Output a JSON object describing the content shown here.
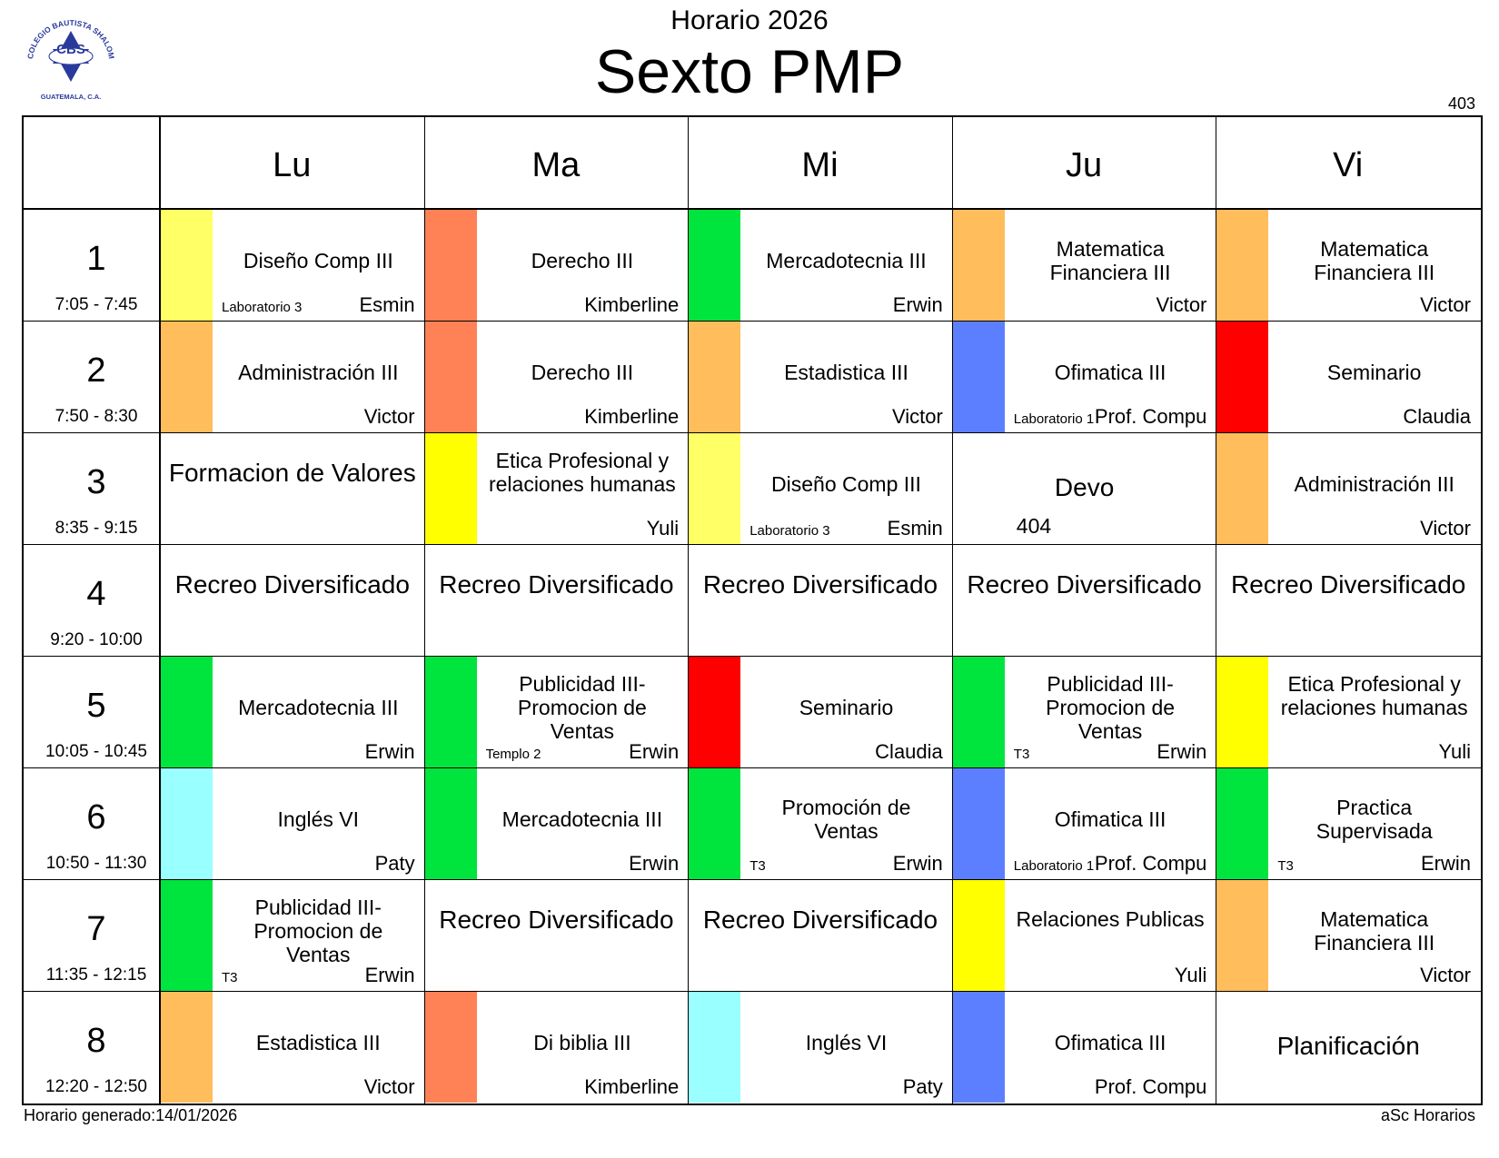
{
  "header": {
    "logo_text": "COLEGIO BAUTISTA SHALOM",
    "logo_abbr": "CBS",
    "logo_location": "GUATEMALA, C.A.",
    "year_title": "Horario 2026",
    "main_title": "Sexto PMP",
    "room_number": "403"
  },
  "days": [
    "Lu",
    "Ma",
    "Mi",
    "Ju",
    "Vi"
  ],
  "periods": [
    {
      "num": "1",
      "time": "7:05 - 7:45"
    },
    {
      "num": "2",
      "time": "7:50 - 8:30"
    },
    {
      "num": "3",
      "time": "8:35 - 9:15"
    },
    {
      "num": "4",
      "time": "9:20 - 10:00"
    },
    {
      "num": "5",
      "time": "10:05 - 10:45"
    },
    {
      "num": "6",
      "time": "10:50 - 11:30"
    },
    {
      "num": "7",
      "time": "11:35 - 12:15"
    },
    {
      "num": "8",
      "time": "12:20 - 12:50"
    }
  ],
  "colors": {
    "yellow_light": "#ffff66",
    "salmon": "#ff8257",
    "green": "#00e53d",
    "orange": "#ffbd5b",
    "blue": "#5b7fff",
    "red": "#ff0000",
    "yellow": "#ffff00",
    "cyan": "#9affff"
  },
  "schedule": [
    [
      {
        "subject": "Diseño Comp III",
        "teacher": "Esmin",
        "room": "Laboratorio 3",
        "color": "#ffff66"
      },
      {
        "subject": "Administración III",
        "teacher": "Victor",
        "room": "",
        "color": "#ffbd5b"
      },
      {
        "subject": "Formacion de Valores",
        "teacher": "",
        "room": "",
        "color": "",
        "big": true
      },
      {
        "subject": "Recreo Diversificado",
        "teacher": "",
        "room": "",
        "color": "",
        "big": true
      },
      {
        "subject": "Mercadotecnia III",
        "teacher": "Erwin",
        "room": "",
        "color": "#00e53d"
      },
      {
        "subject": "Inglés VI",
        "teacher": "Paty",
        "room": "",
        "color": "#9affff"
      },
      {
        "subject": "Publicidad III-Promocion de Ventas",
        "teacher": "Erwin",
        "room": "T3",
        "color": "#00e53d"
      },
      {
        "subject": "Estadistica III",
        "teacher": "Victor",
        "room": "",
        "color": "#ffbd5b"
      }
    ],
    [
      {
        "subject": "Derecho III",
        "teacher": "Kimberline",
        "room": "",
        "color": "#ff8257"
      },
      {
        "subject": "Derecho III",
        "teacher": "Kimberline",
        "room": "",
        "color": "#ff8257"
      },
      {
        "subject": "Etica Profesional y relaciones humanas",
        "teacher": "Yuli",
        "room": "",
        "color": "#ffff00"
      },
      {
        "subject": "Recreo Diversificado",
        "teacher": "",
        "room": "",
        "color": "",
        "big": true
      },
      {
        "subject": "Publicidad III-Promocion de Ventas",
        "teacher": "Erwin",
        "room": "Templo 2",
        "color": "#00e53d"
      },
      {
        "subject": "Mercadotecnia III",
        "teacher": "Erwin",
        "room": "",
        "color": "#00e53d"
      },
      {
        "subject": "Recreo Diversificado",
        "teacher": "",
        "room": "",
        "color": "",
        "big": true
      },
      {
        "subject": "Di biblia III",
        "teacher": "Kimberline",
        "room": "",
        "color": "#ff8257"
      }
    ],
    [
      {
        "subject": "Mercadotecnia III",
        "teacher": "Erwin",
        "room": "",
        "color": "#00e53d"
      },
      {
        "subject": "Estadistica III",
        "teacher": "Victor",
        "room": "",
        "color": "#ffbd5b"
      },
      {
        "subject": "Diseño Comp III",
        "teacher": "Esmin",
        "room": "Laboratorio 3",
        "color": "#ffff66"
      },
      {
        "subject": "Recreo Diversificado",
        "teacher": "",
        "room": "",
        "color": "",
        "big": true
      },
      {
        "subject": "Seminario",
        "teacher": "Claudia",
        "room": "",
        "color": "#ff0000"
      },
      {
        "subject": "Promoción de Ventas",
        "teacher": "Erwin",
        "room": "T3",
        "color": "#00e53d"
      },
      {
        "subject": "Recreo Diversificado",
        "teacher": "",
        "room": "",
        "color": "",
        "big": true
      },
      {
        "subject": "Inglés VI",
        "teacher": "Paty",
        "room": "",
        "color": "#9affff"
      }
    ],
    [
      {
        "subject": "Matematica Financiera III",
        "teacher": "Victor",
        "room": "",
        "color": "#ffbd5b"
      },
      {
        "subject": "Ofimatica III",
        "teacher": "Prof. Compu",
        "room": "Laboratorio 1",
        "color": "#5b7fff"
      },
      {
        "subject": "Devo",
        "teacher": "",
        "room_big": "404",
        "room": "",
        "color": "",
        "big": true
      },
      {
        "subject": "Recreo Diversificado",
        "teacher": "",
        "room": "",
        "color": "",
        "big": true
      },
      {
        "subject": "Publicidad III-Promocion de Ventas",
        "teacher": "Erwin",
        "room": "T3",
        "color": "#00e53d"
      },
      {
        "subject": "Ofimatica III",
        "teacher": "Prof. Compu",
        "room": "Laboratorio 1",
        "color": "#5b7fff"
      },
      {
        "subject": "Relaciones Publicas",
        "teacher": "Yuli",
        "room": "",
        "color": "#ffff00"
      },
      {
        "subject": "Ofimatica III",
        "teacher": "Prof. Compu",
        "room": "",
        "color": "#5b7fff"
      }
    ],
    [
      {
        "subject": "Matematica Financiera III",
        "teacher": "Victor",
        "room": "",
        "color": "#ffbd5b"
      },
      {
        "subject": "Seminario",
        "teacher": "Claudia",
        "room": "",
        "color": "#ff0000"
      },
      {
        "subject": "Administración III",
        "teacher": "Victor",
        "room": "",
        "color": "#ffbd5b"
      },
      {
        "subject": "Recreo Diversificado",
        "teacher": "",
        "room": "",
        "color": "",
        "big": true
      },
      {
        "subject": "Etica Profesional y relaciones humanas",
        "teacher": "Yuli",
        "room": "",
        "color": "#ffff00"
      },
      {
        "subject": "Practica Supervisada",
        "teacher": "Erwin",
        "room": "T3",
        "color": "#00e53d"
      },
      {
        "subject": "Matematica Financiera III",
        "teacher": "Victor",
        "room": "",
        "color": "#ffbd5b"
      },
      {
        "subject": "Planificación",
        "teacher": "",
        "room": "",
        "color": "",
        "big": true
      }
    ]
  ],
  "footer": {
    "generated": "Horario generado:14/01/2026",
    "software": "aSc Horarios"
  }
}
